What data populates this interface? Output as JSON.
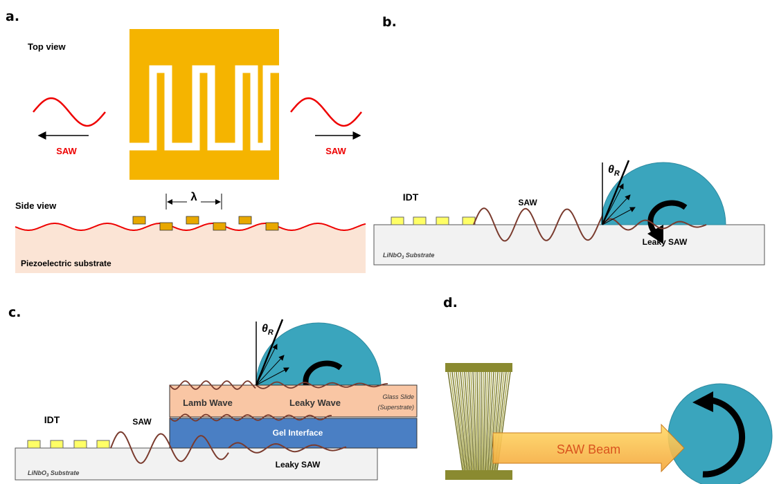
{
  "panel_a": {
    "label": "a.",
    "top_view": "Top view",
    "saw_left": "SAW",
    "saw_right": "SAW",
    "wavelength": "λ",
    "side_view": "Side view",
    "substrate": "Piezoelectric substrate"
  },
  "panel_b": {
    "label": "b.",
    "idt": "IDT",
    "saw": "SAW",
    "angle": {
      "symbol": "θ",
      "subscript": "R"
    },
    "leaky_saw": "Leaky SAW",
    "substrate": {
      "formula": "LiNbO",
      "subscript": "3",
      "name": " Substrate"
    }
  },
  "panel_c": {
    "label": "c.",
    "idt": "IDT",
    "saw": "SAW",
    "angle": {
      "symbol": "θ",
      "subscript": "R"
    },
    "lamb_wave": "Lamb Wave",
    "leaky_wave": "Leaky Wave",
    "glass_slide": [
      "Glass Slide",
      "(Superstrate)"
    ],
    "gel_interface": "Gel Interface",
    "leaky_saw": "Leaky SAW",
    "substrate": {
      "formula": "LiNbO",
      "subscript": "3",
      "name": " Substrate"
    }
  },
  "panel_d": {
    "label": "d.",
    "beam": "SAW Beam"
  }
}
